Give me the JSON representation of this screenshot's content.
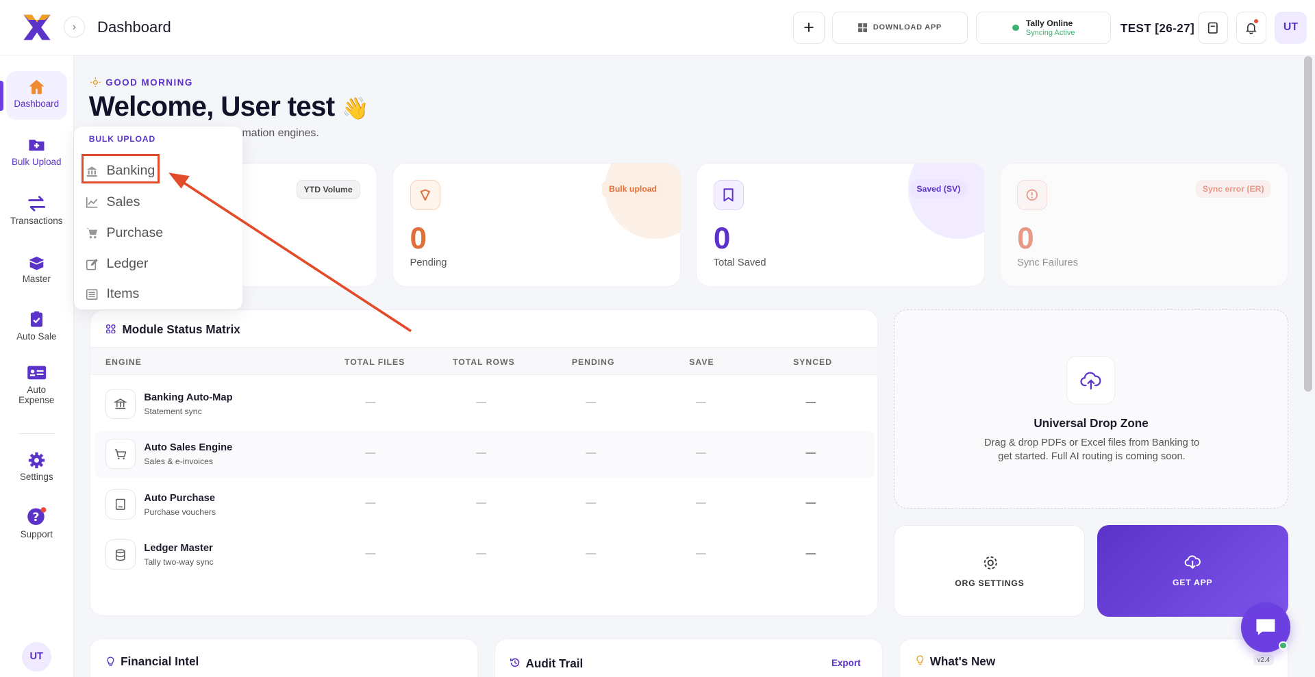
{
  "header": {
    "title": "Dashboard",
    "download": "DOWNLOAD APP",
    "tally_status": "Tally Online",
    "tally_sub": "Syncing Active",
    "fy": "TEST [26-27]",
    "avatar": "UT"
  },
  "sidebar": {
    "items": [
      {
        "label": "Dashboard"
      },
      {
        "label": "Bulk Upload"
      },
      {
        "label": "Transactions"
      },
      {
        "label": "Master"
      },
      {
        "label": "Auto Sale"
      },
      {
        "label": "Auto Expense"
      },
      {
        "label": "Settings"
      },
      {
        "label": "Support"
      }
    ],
    "avatar": "UT"
  },
  "greeting": "GOOD MORNING",
  "welcome": "Welcome, User test",
  "welcome_emoji": "👋",
  "subtitle": "ation status across all your automation engines.",
  "cards": [
    {
      "tag": "YTD Volume",
      "value": "",
      "label": ""
    },
    {
      "tag": "Bulk upload",
      "value": "0",
      "label": "Pending"
    },
    {
      "tag": "Saved (SV)",
      "value": "0",
      "label": "Total Saved"
    },
    {
      "tag": "Sync error (ER)",
      "value": "0",
      "label": "Sync Failures"
    }
  ],
  "matrix": {
    "title": "Module Status Matrix",
    "headers": [
      "ENGINE",
      "TOTAL FILES",
      "TOTAL ROWS",
      "PENDING",
      "SAVE",
      "SYNCED"
    ],
    "rows": [
      {
        "name": "Banking Auto-Map",
        "desc": "Statement sync",
        "values": [
          "—",
          "—",
          "—",
          "—",
          "—"
        ]
      },
      {
        "name": "Auto Sales Engine",
        "desc": "Sales & e-invoices",
        "values": [
          "—",
          "—",
          "—",
          "—",
          "—"
        ]
      },
      {
        "name": "Auto Purchase",
        "desc": "Purchase vouchers",
        "values": [
          "—",
          "—",
          "—",
          "—",
          "—"
        ]
      },
      {
        "name": "Ledger Master",
        "desc": "Tally two-way sync",
        "values": [
          "—",
          "—",
          "—",
          "—",
          "—"
        ]
      }
    ]
  },
  "dropzone": {
    "title": "Universal Drop Zone",
    "desc": "Drag & drop PDFs or Excel files from Banking to get started. Full AI routing is coming soon."
  },
  "org_settings": "ORG SETTINGS",
  "get_app": "GET APP",
  "bottom": {
    "financial": "Financial Intel",
    "audit": "Audit Trail",
    "export": "Export",
    "whats_new": "What's New",
    "version": "v2.4"
  },
  "dropdown": {
    "header": "BULK UPLOAD",
    "items": [
      {
        "label": "Banking"
      },
      {
        "label": "Sales"
      },
      {
        "label": "Purchase"
      },
      {
        "label": "Ledger"
      },
      {
        "label": "Items"
      }
    ]
  },
  "colors": {
    "brand": "#5b33c9",
    "orange": "#e0703a",
    "annotation": "#e34c2b"
  }
}
